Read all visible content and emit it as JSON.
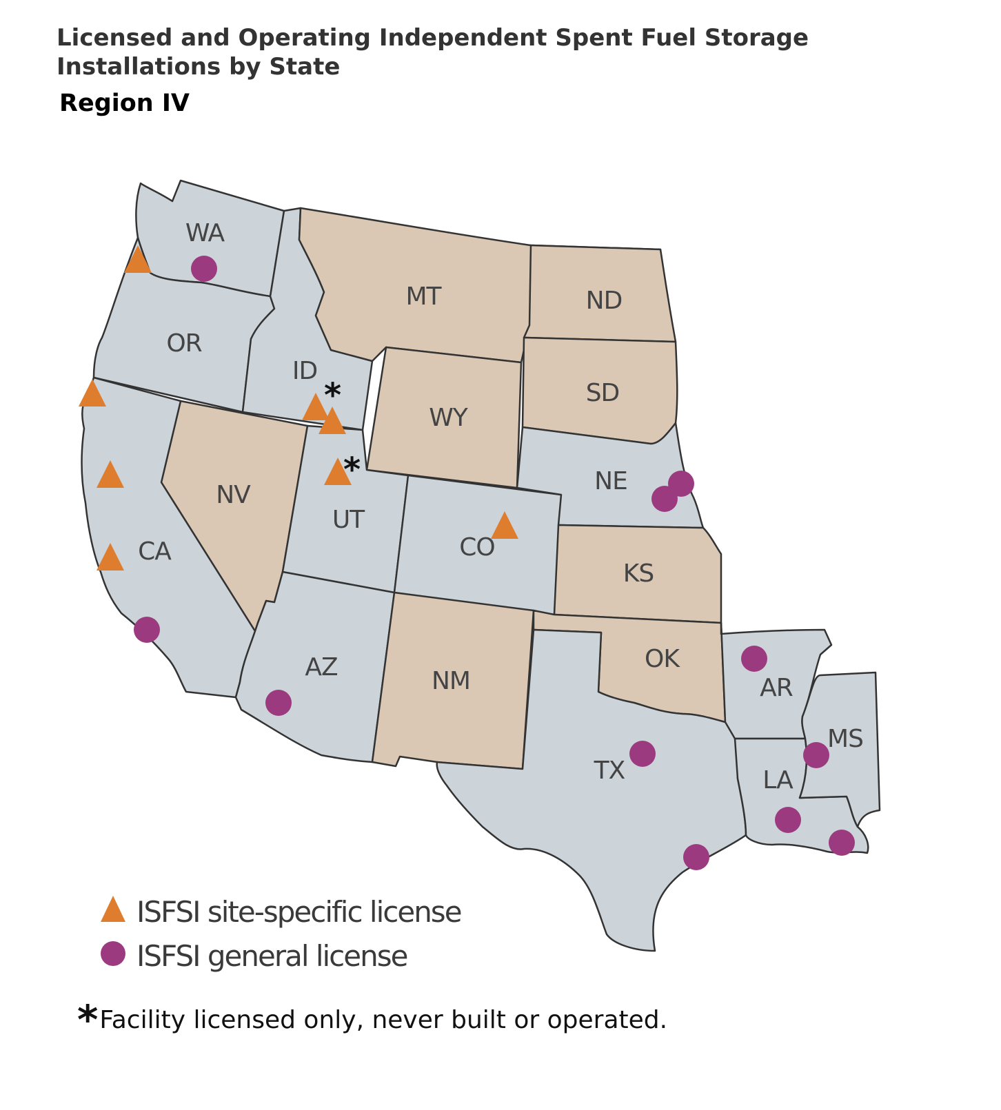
{
  "title": {
    "line1": "Licensed and Operating Independent Spent Fuel Storage",
    "line2": "Installations by State"
  },
  "region": "Region IV",
  "colors": {
    "state_with_isfsi": "#ccd4da",
    "state_without_isfsi": "#dbc8b4",
    "border": "#333333",
    "site_specific_marker": "#df7d2f",
    "general_marker": "#9c3a7f"
  },
  "states": [
    {
      "abbr": "WA",
      "has_isfsi": true
    },
    {
      "abbr": "OR",
      "has_isfsi": true
    },
    {
      "abbr": "CA",
      "has_isfsi": true
    },
    {
      "abbr": "ID",
      "has_isfsi": true
    },
    {
      "abbr": "NV",
      "has_isfsi": false
    },
    {
      "abbr": "UT",
      "has_isfsi": true
    },
    {
      "abbr": "AZ",
      "has_isfsi": true
    },
    {
      "abbr": "MT",
      "has_isfsi": false
    },
    {
      "abbr": "WY",
      "has_isfsi": false
    },
    {
      "abbr": "CO",
      "has_isfsi": true
    },
    {
      "abbr": "NM",
      "has_isfsi": false
    },
    {
      "abbr": "ND",
      "has_isfsi": false
    },
    {
      "abbr": "SD",
      "has_isfsi": false
    },
    {
      "abbr": "NE",
      "has_isfsi": true
    },
    {
      "abbr": "KS",
      "has_isfsi": false
    },
    {
      "abbr": "OK",
      "has_isfsi": false
    },
    {
      "abbr": "TX",
      "has_isfsi": true
    },
    {
      "abbr": "AR",
      "has_isfsi": true
    },
    {
      "abbr": "LA",
      "has_isfsi": true
    },
    {
      "abbr": "MS",
      "has_isfsi": true
    }
  ],
  "legend": {
    "site_specific": "ISFSI site-specific license",
    "general": "ISFSI general license"
  },
  "footnote": {
    "symbol": "*",
    "text": "Facility licensed only, never built or operated."
  }
}
